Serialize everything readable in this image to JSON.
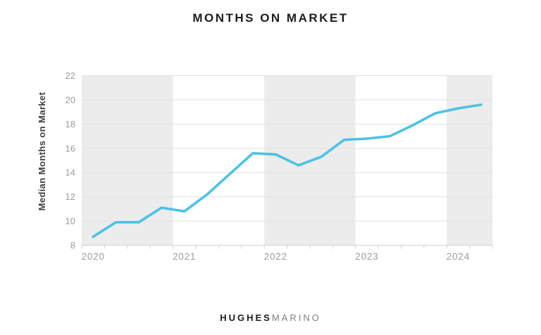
{
  "title": "MONTHS ON MARKET",
  "logo": {
    "part1": "HUGHES",
    "part2": "MARINO"
  },
  "chart_data": {
    "type": "line",
    "title": "MONTHS ON MARKET",
    "ylabel": "Median Months on Market",
    "ylim": [
      8,
      22
    ],
    "yticks": [
      8,
      10,
      12,
      14,
      16,
      18,
      20,
      22
    ],
    "categories": [
      "2020 Q1",
      "2020 Q2",
      "2020 Q3",
      "2020 Q4",
      "2021 Q1",
      "2021 Q2",
      "2021 Q3",
      "2021 Q4",
      "2022 Q1",
      "2022 Q2",
      "2022 Q3",
      "2022 Q4",
      "2023 Q1",
      "2023 Q2",
      "2023 Q3",
      "2023 Q4",
      "2024 Q1",
      "2024 Q2"
    ],
    "values": [
      8.7,
      9.9,
      9.9,
      11.1,
      10.8,
      12.2,
      13.9,
      15.6,
      15.5,
      14.6,
      15.3,
      16.7,
      16.8,
      17.0,
      17.9,
      18.9,
      19.3,
      19.6
    ],
    "x_tick_labels": [
      "2020",
      "2021",
      "2022",
      "2023",
      "2024"
    ],
    "quarters_per_year": 4,
    "shaded_years": [
      "2020",
      "2022",
      "2024"
    ],
    "legend": "none",
    "grid": "horizontal",
    "line_color": "#4cc2e4",
    "band_color": "#ececec",
    "grid_color": "#e0e0e0",
    "axis_color": "#d2d2d2",
    "tick_label_color": "#9c9c9c",
    "title_color": "#1d1d1d"
  }
}
